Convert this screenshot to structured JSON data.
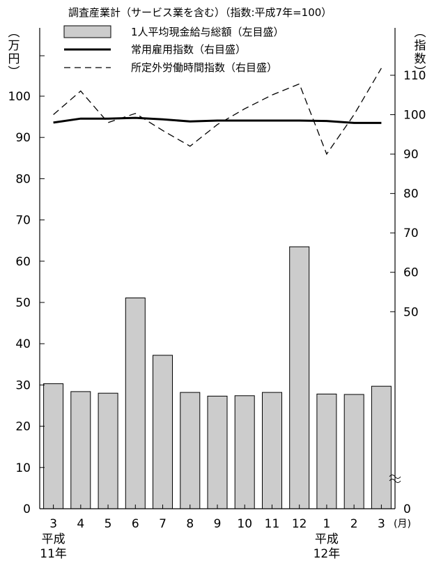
{
  "chart_data": {
    "type": "bar",
    "title": "調査産業計（サービス業を含む）（指数:平成7年=100）",
    "left_unit": "万円",
    "right_unit": "指数",
    "month_unit": "(月)",
    "categories": [
      "3",
      "4",
      "5",
      "6",
      "7",
      "8",
      "9",
      "10",
      "11",
      "12",
      "1",
      "2",
      "3"
    ],
    "era_labels": [
      {
        "index": 0,
        "line1": "平成",
        "line2": "11年"
      },
      {
        "index": 10,
        "line1": "平成",
        "line2": "12年"
      }
    ],
    "left_axis": {
      "ylim": [
        0,
        110
      ],
      "ticks": [
        0,
        10,
        20,
        30,
        40,
        50,
        60,
        70,
        80,
        90,
        100
      ]
    },
    "right_axis": {
      "ylim": [
        0,
        115
      ],
      "ticks": [
        0,
        50,
        60,
        70,
        80,
        90,
        100,
        110
      ],
      "break_between": [
        0,
        50
      ]
    },
    "series": [
      {
        "name": "1人平均現金給与総額（左目盛）",
        "kind": "bar",
        "axis": "left",
        "color": "#cccccc",
        "values": [
          30.3,
          28.4,
          28.0,
          51.1,
          37.2,
          28.2,
          27.3,
          27.4,
          28.2,
          63.5,
          27.8,
          27.7,
          29.7
        ]
      },
      {
        "name": "常用雇用指数（右目盛）",
        "kind": "line",
        "style": "solid",
        "axis": "right",
        "color": "#000000",
        "values": [
          98.0,
          99.0,
          99.0,
          99.2,
          98.8,
          98.3,
          98.5,
          98.5,
          98.5,
          98.5,
          98.4,
          97.9,
          97.9
        ]
      },
      {
        "name": "所定外労働時間指数（右目盛）",
        "kind": "line",
        "style": "dashed",
        "axis": "right",
        "color": "#000000",
        "values": [
          100.0,
          106.0,
          98.0,
          100.3,
          96.0,
          92.0,
          97.5,
          101.5,
          105.0,
          107.8,
          90.0,
          100.0,
          111.8
        ]
      }
    ]
  }
}
